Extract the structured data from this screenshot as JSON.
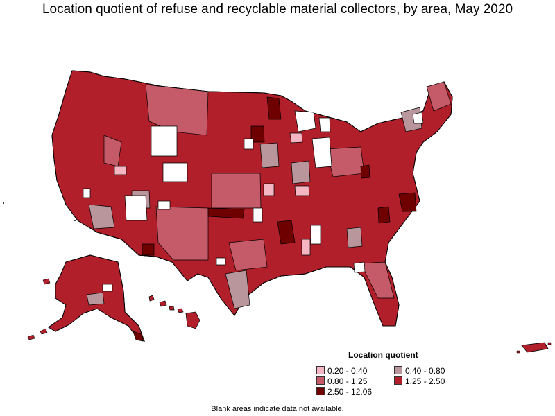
{
  "title": "Location quotient of refuse and recyclable material collectors, by area, May 2020",
  "legend": {
    "title": "Location quotient",
    "items": [
      {
        "label": "0.20 - 0.40",
        "color": "#f4b6c2"
      },
      {
        "label": "0.40 - 0.80",
        "color": "#b8969c"
      },
      {
        "label": "0.80 - 1.25",
        "color": "#c55a68"
      },
      {
        "label": "1.25 - 2.50",
        "color": "#b11f2a"
      },
      {
        "label": "2.50 - 12.06",
        "color": "#6e0000"
      }
    ]
  },
  "note": "Blank areas indicate data not available.",
  "colors": {
    "no_data": "#ffffff",
    "border": "#000000"
  }
}
